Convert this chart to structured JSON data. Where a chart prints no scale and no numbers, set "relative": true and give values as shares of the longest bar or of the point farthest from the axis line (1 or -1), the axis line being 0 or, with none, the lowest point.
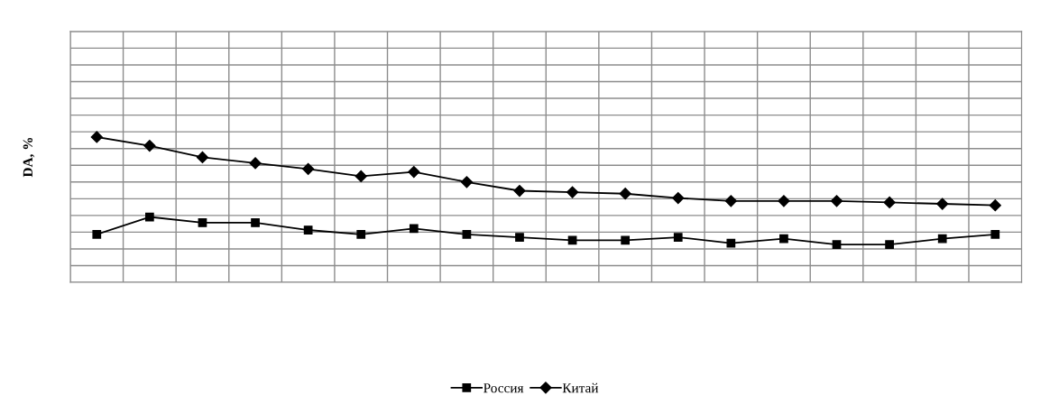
{
  "chart_data": {
    "type": "line",
    "ylabel": "DA, %",
    "relative": true,
    "grid": true,
    "legend": "bottom",
    "categories": [
      null,
      null,
      null,
      null,
      null,
      null,
      null,
      null,
      null,
      null,
      null,
      null,
      null,
      null,
      null,
      null,
      null,
      null
    ],
    "series": [
      {
        "name": "Россия",
        "color": "#000000",
        "marker": "square",
        "values": [
          0.33,
          0.45,
          0.41,
          0.41,
          0.36,
          0.33,
          0.37,
          0.33,
          0.31,
          0.29,
          0.29,
          0.31,
          0.27,
          0.3,
          0.26,
          0.26,
          0.3,
          0.33
        ]
      },
      {
        "name": "Китай",
        "color": "#000000",
        "marker": "diamond",
        "values": [
          1,
          0.94,
          0.86,
          0.82,
          0.78,
          0.73,
          0.76,
          0.69,
          0.63,
          0.62,
          0.61,
          0.58,
          0.56,
          0.56,
          0.56,
          0.55,
          0.54,
          0.53
        ]
      }
    ]
  }
}
